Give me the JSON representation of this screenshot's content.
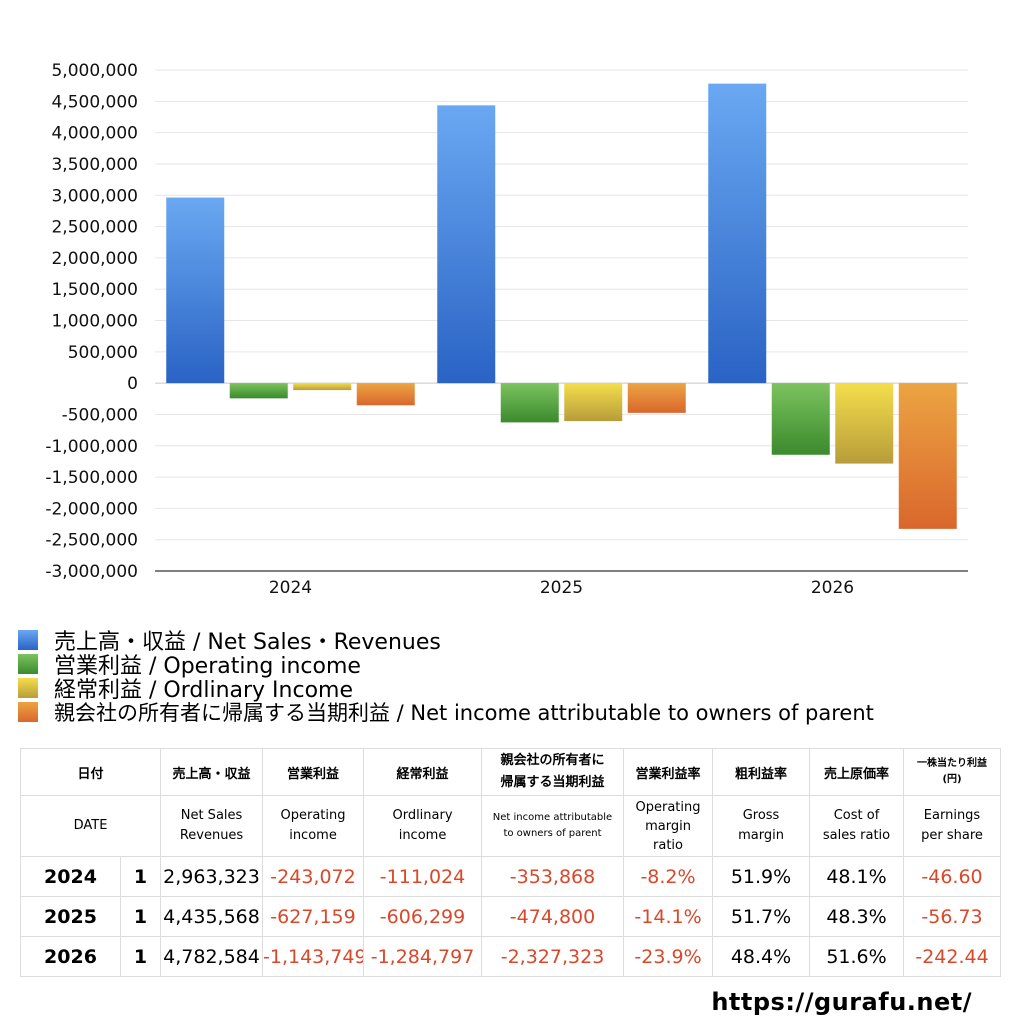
{
  "chart_data": {
    "type": "bar",
    "categories": [
      "2024",
      "2025",
      "2026"
    ],
    "series": [
      {
        "name": "売上高・収益 / Net Sales・Revenues",
        "values": [
          2963323,
          4435568,
          4782584
        ],
        "color_top": "#6aa8f2",
        "color_bottom": "#2a63c4"
      },
      {
        "name": "営業利益 / Operating income",
        "values": [
          -243072,
          -627159,
          -1143749
        ],
        "color_top": "#7cc35f",
        "color_bottom": "#3b8a2c"
      },
      {
        "name": "経常利益 / Ordlinary Income",
        "values": [
          -111024,
          -606299,
          -1284797
        ],
        "color_top": "#f4de4c",
        "color_bottom": "#b89c3a"
      },
      {
        "name": "親会社の所有者に帰属する当期利益 / Net income attributable to owners of parent",
        "values": [
          -353868,
          -474800,
          -2327323
        ],
        "color_top": "#eca443",
        "color_bottom": "#d9672c"
      }
    ],
    "ylim": [
      -3000000,
      5000000
    ],
    "yticks": [
      5000000,
      4500000,
      4000000,
      3500000,
      3000000,
      2500000,
      2000000,
      1500000,
      1000000,
      500000,
      0,
      -500000,
      -1000000,
      -1500000,
      -2000000,
      -2500000,
      -3000000
    ],
    "ytick_labels": [
      "5,000,000",
      "4,500,000",
      "4,000,000",
      "3,500,000",
      "3,000,000",
      "2,500,000",
      "2,000,000",
      "1,500,000",
      "1,000,000",
      "500,000",
      "0",
      "-500,000",
      "-1,000,000",
      "-1,500,000",
      "-2,000,000",
      "-2,500,000",
      "-3,000,000"
    ],
    "grid": true,
    "legend_placement": "bottom"
  },
  "table": {
    "header_jp": {
      "date": "日付",
      "sales": "売上高・収益",
      "op": "営業利益",
      "ord": "経常利益",
      "ni_line1": "親会社の所有者に",
      "ni_line2": "帰属する当期利益",
      "opm": "営業利益率",
      "gm": "粗利益率",
      "cost": "売上原価率",
      "eps_line1": "一株当たり利益",
      "eps_line2": "(円)"
    },
    "header_en": {
      "date": "DATE",
      "sales_line1": "Net Sales",
      "sales_line2": "Revenues",
      "op_line1": "Operating",
      "op_line2": "income",
      "ord_line1": "Ordlinary",
      "ord_line2": "income",
      "ni_line1": "Net income attributable",
      "ni_line2": "to owners of parent",
      "opm_line1": "Operating",
      "opm_line2": "margin",
      "opm_line3": "ratio",
      "gm_line1": "Gross",
      "gm_line2": "margin",
      "cost_line1": "Cost of",
      "cost_line2": "sales ratio",
      "eps_line1": "Earnings",
      "eps_line2": "per share"
    },
    "rows": [
      {
        "year": "2024",
        "q": "1",
        "sales": "2,963,323",
        "op": "-243,072",
        "ord": "-111,024",
        "ni": "-353,868",
        "opm": "-8.2%",
        "gm": "51.9%",
        "cost": "48.1%",
        "eps": "-46.60"
      },
      {
        "year": "2025",
        "q": "1",
        "sales": "4,435,568",
        "op": "-627,159",
        "ord": "-606,299",
        "ni": "-474,800",
        "opm": "-14.1%",
        "gm": "51.7%",
        "cost": "48.3%",
        "eps": "-56.73"
      },
      {
        "year": "2026",
        "q": "1",
        "sales": "4,782,584",
        "op": "-1,143,749",
        "ord": "-1,284,797",
        "ni": "-2,327,323",
        "opm": "-23.9%",
        "gm": "48.4%",
        "cost": "51.6%",
        "eps": "-242.44"
      }
    ]
  },
  "footer": {
    "url": "https://gurafu.net/"
  }
}
